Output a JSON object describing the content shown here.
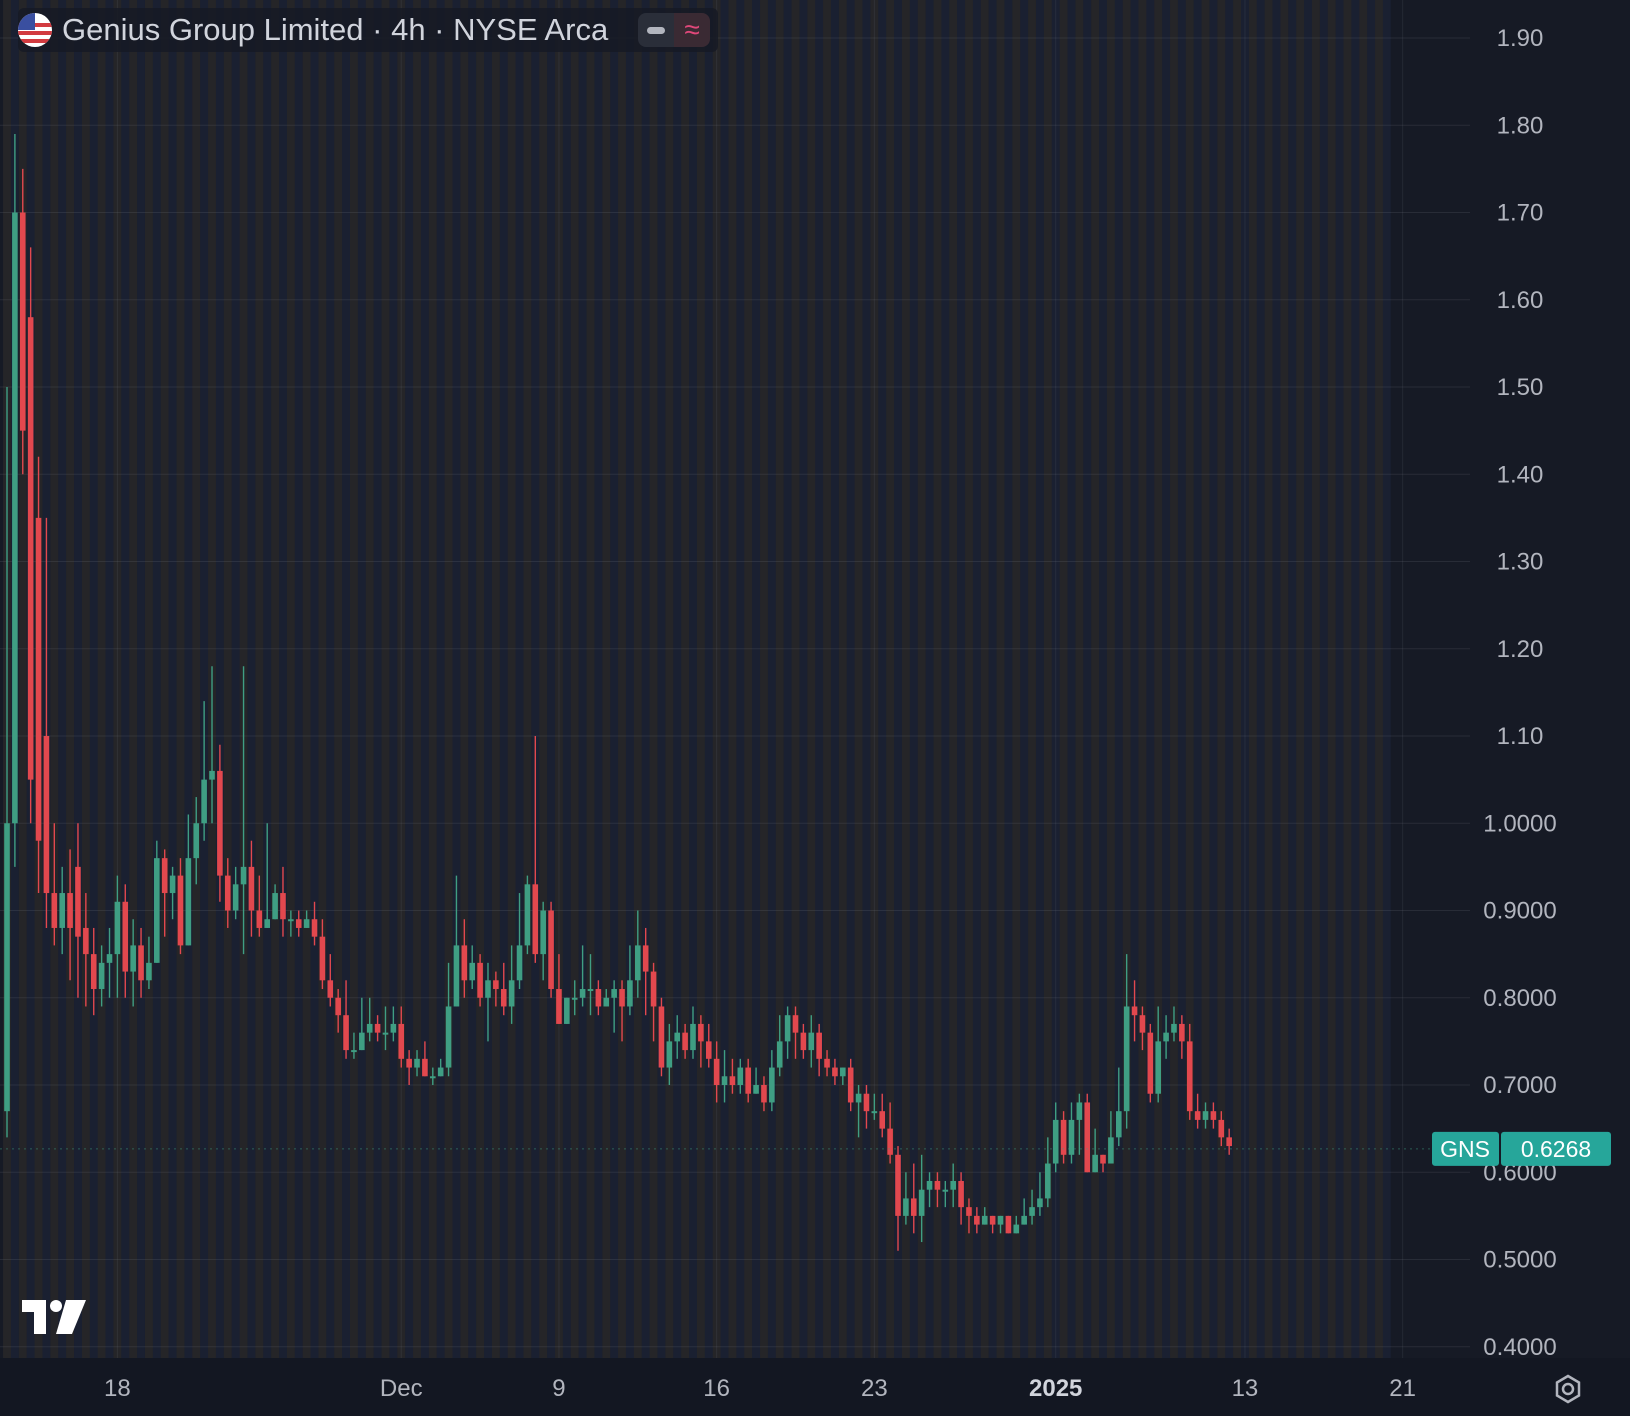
{
  "header": {
    "title": "Genius Group Limited · 4h · NYSE Arca",
    "flag_icon": "us-flag-icon",
    "indicator_icons": [
      "hide-icon",
      "approx-icon"
    ]
  },
  "price_label": {
    "ticker": "GNS",
    "value": "0.6268"
  },
  "colors": {
    "up": "#3f9e83",
    "down": "#e2484e",
    "background": "#161a25",
    "text": "#b2b5be",
    "label_bg": "#26a69a"
  },
  "chart_data": {
    "type": "candlestick",
    "title": "Genius Group Limited · 4h · NYSE Arca",
    "symbol": "GNS",
    "last_price": 0.6268,
    "ylim": [
      0.38,
      1.94
    ],
    "y_ticks": [
      "1.90",
      "1.80",
      "1.70",
      "1.60",
      "1.50",
      "1.40",
      "1.30",
      "1.20",
      "1.10",
      "1.0000",
      "0.9000",
      "0.8000",
      "0.7000",
      "0.6000",
      "0.5000",
      "0.4000"
    ],
    "x_ticks": [
      {
        "label": "18",
        "bar": 14,
        "bold": false
      },
      {
        "label": "Dec",
        "bar": 50,
        "bold": false
      },
      {
        "label": "9",
        "bar": 70,
        "bold": false
      },
      {
        "label": "16",
        "bar": 90,
        "bold": false
      },
      {
        "label": "23",
        "bar": 110,
        "bold": false
      },
      {
        "label": "2025",
        "bar": 133,
        "bold": true
      },
      {
        "label": "13",
        "bar": 157,
        "bold": false
      },
      {
        "label": "21",
        "bar": 177,
        "bold": false
      }
    ],
    "grid": true,
    "candles": [
      [
        0.67,
        1.0,
        1.5,
        0.64
      ],
      [
        1.0,
        1.7,
        1.79,
        0.95
      ],
      [
        1.7,
        1.45,
        1.75,
        1.4
      ],
      [
        1.58,
        1.05,
        1.66,
        1.0
      ],
      [
        1.35,
        0.98,
        1.42,
        0.92
      ],
      [
        1.1,
        0.92,
        1.35,
        0.88
      ],
      [
        0.92,
        0.88,
        1.0,
        0.86
      ],
      [
        0.88,
        0.92,
        0.95,
        0.85
      ],
      [
        0.92,
        0.88,
        0.97,
        0.82
      ],
      [
        0.95,
        0.87,
        1.0,
        0.8
      ],
      [
        0.88,
        0.85,
        0.92,
        0.79
      ],
      [
        0.85,
        0.81,
        0.88,
        0.78
      ],
      [
        0.81,
        0.84,
        0.86,
        0.79
      ],
      [
        0.84,
        0.85,
        0.88,
        0.8
      ],
      [
        0.85,
        0.91,
        0.94,
        0.8
      ],
      [
        0.91,
        0.83,
        0.93,
        0.8
      ],
      [
        0.83,
        0.86,
        0.89,
        0.79
      ],
      [
        0.86,
        0.82,
        0.88,
        0.8
      ],
      [
        0.82,
        0.84,
        0.87,
        0.81
      ],
      [
        0.84,
        0.96,
        0.98,
        0.84
      ],
      [
        0.96,
        0.92,
        0.97,
        0.87
      ],
      [
        0.92,
        0.94,
        0.95,
        0.89
      ],
      [
        0.94,
        0.86,
        0.96,
        0.85
      ],
      [
        0.86,
        0.96,
        1.01,
        0.86
      ],
      [
        0.96,
        1.0,
        1.03,
        0.93
      ],
      [
        1.0,
        1.05,
        1.14,
        0.98
      ],
      [
        1.05,
        1.06,
        1.18,
        1.0
      ],
      [
        1.06,
        0.94,
        1.09,
        0.91
      ],
      [
        0.94,
        0.9,
        0.96,
        0.88
      ],
      [
        0.9,
        0.93,
        0.95,
        0.89
      ],
      [
        0.93,
        0.95,
        1.18,
        0.85
      ],
      [
        0.95,
        0.9,
        0.98,
        0.87
      ],
      [
        0.9,
        0.88,
        0.94,
        0.87
      ],
      [
        0.88,
        0.89,
        1.0,
        0.88
      ],
      [
        0.89,
        0.92,
        0.93,
        0.89
      ],
      [
        0.92,
        0.89,
        0.95,
        0.87
      ],
      [
        0.89,
        0.89,
        0.9,
        0.87
      ],
      [
        0.89,
        0.88,
        0.9,
        0.87
      ],
      [
        0.88,
        0.89,
        0.9,
        0.88
      ],
      [
        0.89,
        0.87,
        0.91,
        0.86
      ],
      [
        0.87,
        0.82,
        0.89,
        0.81
      ],
      [
        0.82,
        0.8,
        0.85,
        0.79
      ],
      [
        0.8,
        0.78,
        0.81,
        0.76
      ],
      [
        0.78,
        0.74,
        0.82,
        0.73
      ],
      [
        0.74,
        0.74,
        0.76,
        0.73
      ],
      [
        0.74,
        0.76,
        0.8,
        0.74
      ],
      [
        0.76,
        0.77,
        0.8,
        0.75
      ],
      [
        0.77,
        0.76,
        0.78,
        0.75
      ],
      [
        0.76,
        0.76,
        0.79,
        0.74
      ],
      [
        0.76,
        0.77,
        0.79,
        0.75
      ],
      [
        0.77,
        0.73,
        0.79,
        0.72
      ],
      [
        0.73,
        0.72,
        0.74,
        0.7
      ],
      [
        0.72,
        0.73,
        0.74,
        0.71
      ],
      [
        0.73,
        0.71,
        0.75,
        0.71
      ],
      [
        0.71,
        0.71,
        0.72,
        0.7
      ],
      [
        0.71,
        0.72,
        0.73,
        0.71
      ],
      [
        0.72,
        0.79,
        0.84,
        0.71
      ],
      [
        0.79,
        0.86,
        0.94,
        0.79
      ],
      [
        0.86,
        0.82,
        0.89,
        0.8
      ],
      [
        0.82,
        0.84,
        0.86,
        0.81
      ],
      [
        0.84,
        0.8,
        0.85,
        0.79
      ],
      [
        0.8,
        0.82,
        0.84,
        0.75
      ],
      [
        0.82,
        0.81,
        0.83,
        0.79
      ],
      [
        0.81,
        0.79,
        0.84,
        0.78
      ],
      [
        0.79,
        0.82,
        0.86,
        0.77
      ],
      [
        0.82,
        0.86,
        0.92,
        0.81
      ],
      [
        0.86,
        0.93,
        0.94,
        0.85
      ],
      [
        0.93,
        0.85,
        1.1,
        0.84
      ],
      [
        0.85,
        0.9,
        0.91,
        0.82
      ],
      [
        0.9,
        0.81,
        0.91,
        0.8
      ],
      [
        0.81,
        0.77,
        0.85,
        0.77
      ],
      [
        0.77,
        0.8,
        0.8,
        0.77
      ],
      [
        0.8,
        0.8,
        0.82,
        0.78
      ],
      [
        0.8,
        0.81,
        0.86,
        0.79
      ],
      [
        0.81,
        0.81,
        0.85,
        0.78
      ],
      [
        0.81,
        0.79,
        0.82,
        0.78
      ],
      [
        0.79,
        0.8,
        0.81,
        0.79
      ],
      [
        0.8,
        0.81,
        0.82,
        0.76
      ],
      [
        0.81,
        0.79,
        0.82,
        0.75
      ],
      [
        0.79,
        0.82,
        0.86,
        0.78
      ],
      [
        0.82,
        0.86,
        0.9,
        0.8
      ],
      [
        0.86,
        0.83,
        0.88,
        0.78
      ],
      [
        0.83,
        0.79,
        0.84,
        0.75
      ],
      [
        0.79,
        0.72,
        0.8,
        0.71
      ],
      [
        0.72,
        0.75,
        0.77,
        0.7
      ],
      [
        0.75,
        0.76,
        0.78,
        0.73
      ],
      [
        0.76,
        0.74,
        0.77,
        0.73
      ],
      [
        0.74,
        0.77,
        0.79,
        0.73
      ],
      [
        0.77,
        0.75,
        0.78,
        0.72
      ],
      [
        0.75,
        0.73,
        0.77,
        0.72
      ],
      [
        0.73,
        0.7,
        0.75,
        0.68
      ],
      [
        0.7,
        0.71,
        0.74,
        0.68
      ],
      [
        0.71,
        0.7,
        0.73,
        0.69
      ],
      [
        0.7,
        0.72,
        0.73,
        0.69
      ],
      [
        0.72,
        0.69,
        0.73,
        0.68
      ],
      [
        0.69,
        0.7,
        0.72,
        0.69
      ],
      [
        0.7,
        0.68,
        0.71,
        0.67
      ],
      [
        0.68,
        0.72,
        0.74,
        0.67
      ],
      [
        0.72,
        0.75,
        0.78,
        0.71
      ],
      [
        0.75,
        0.78,
        0.79,
        0.73
      ],
      [
        0.78,
        0.76,
        0.79,
        0.73
      ],
      [
        0.76,
        0.74,
        0.77,
        0.73
      ],
      [
        0.74,
        0.76,
        0.78,
        0.72
      ],
      [
        0.76,
        0.73,
        0.77,
        0.71
      ],
      [
        0.73,
        0.72,
        0.74,
        0.71
      ],
      [
        0.72,
        0.71,
        0.73,
        0.7
      ],
      [
        0.71,
        0.72,
        0.72,
        0.7
      ],
      [
        0.72,
        0.68,
        0.73,
        0.67
      ],
      [
        0.68,
        0.69,
        0.7,
        0.64
      ],
      [
        0.69,
        0.67,
        0.7,
        0.65
      ],
      [
        0.67,
        0.67,
        0.69,
        0.66
      ],
      [
        0.67,
        0.65,
        0.69,
        0.64
      ],
      [
        0.65,
        0.62,
        0.68,
        0.61
      ],
      [
        0.62,
        0.55,
        0.63,
        0.51
      ],
      [
        0.55,
        0.57,
        0.6,
        0.54
      ],
      [
        0.57,
        0.55,
        0.61,
        0.53
      ],
      [
        0.55,
        0.58,
        0.62,
        0.52
      ],
      [
        0.58,
        0.59,
        0.6,
        0.56
      ],
      [
        0.59,
        0.58,
        0.6,
        0.56
      ],
      [
        0.58,
        0.58,
        0.59,
        0.56
      ],
      [
        0.58,
        0.59,
        0.61,
        0.56
      ],
      [
        0.59,
        0.56,
        0.6,
        0.54
      ],
      [
        0.56,
        0.55,
        0.57,
        0.53
      ],
      [
        0.55,
        0.54,
        0.56,
        0.53
      ],
      [
        0.54,
        0.55,
        0.56,
        0.54
      ],
      [
        0.55,
        0.54,
        0.55,
        0.53
      ],
      [
        0.54,
        0.55,
        0.55,
        0.53
      ],
      [
        0.55,
        0.53,
        0.55,
        0.53
      ],
      [
        0.53,
        0.54,
        0.55,
        0.53
      ],
      [
        0.54,
        0.55,
        0.57,
        0.54
      ],
      [
        0.55,
        0.56,
        0.58,
        0.54
      ],
      [
        0.56,
        0.57,
        0.6,
        0.55
      ],
      [
        0.57,
        0.61,
        0.64,
        0.56
      ],
      [
        0.61,
        0.66,
        0.68,
        0.6
      ],
      [
        0.66,
        0.62,
        0.67,
        0.61
      ],
      [
        0.62,
        0.66,
        0.68,
        0.61
      ],
      [
        0.66,
        0.68,
        0.69,
        0.62
      ],
      [
        0.68,
        0.6,
        0.69,
        0.6
      ],
      [
        0.6,
        0.62,
        0.65,
        0.6
      ],
      [
        0.62,
        0.61,
        0.62,
        0.6
      ],
      [
        0.61,
        0.64,
        0.67,
        0.61
      ],
      [
        0.64,
        0.67,
        0.72,
        0.63
      ],
      [
        0.67,
        0.79,
        0.85,
        0.65
      ],
      [
        0.79,
        0.78,
        0.82,
        0.75
      ],
      [
        0.78,
        0.76,
        0.79,
        0.74
      ],
      [
        0.76,
        0.69,
        0.77,
        0.68
      ],
      [
        0.69,
        0.75,
        0.79,
        0.68
      ],
      [
        0.75,
        0.76,
        0.78,
        0.73
      ],
      [
        0.76,
        0.77,
        0.79,
        0.75
      ],
      [
        0.77,
        0.75,
        0.78,
        0.73
      ],
      [
        0.75,
        0.67,
        0.77,
        0.66
      ],
      [
        0.67,
        0.66,
        0.69,
        0.65
      ],
      [
        0.66,
        0.67,
        0.68,
        0.65
      ],
      [
        0.67,
        0.66,
        0.68,
        0.65
      ],
      [
        0.66,
        0.64,
        0.67,
        0.63
      ],
      [
        0.64,
        0.63,
        0.65,
        0.62
      ]
    ]
  }
}
